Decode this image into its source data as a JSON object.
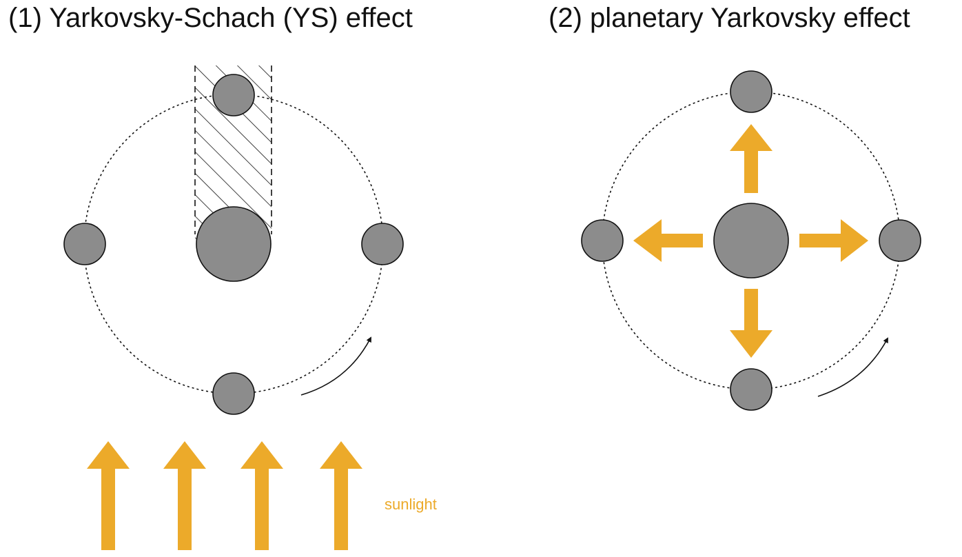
{
  "panels": [
    {
      "title": "(1) Yarkovsky-Schach (YS) effect",
      "label": "sunlight"
    },
    {
      "title": "(2) planetary Yarkovsky effect"
    }
  ],
  "colors": {
    "sunlight": "#ecaa2a",
    "body": "#8c8c8c",
    "outline": "#111111"
  }
}
